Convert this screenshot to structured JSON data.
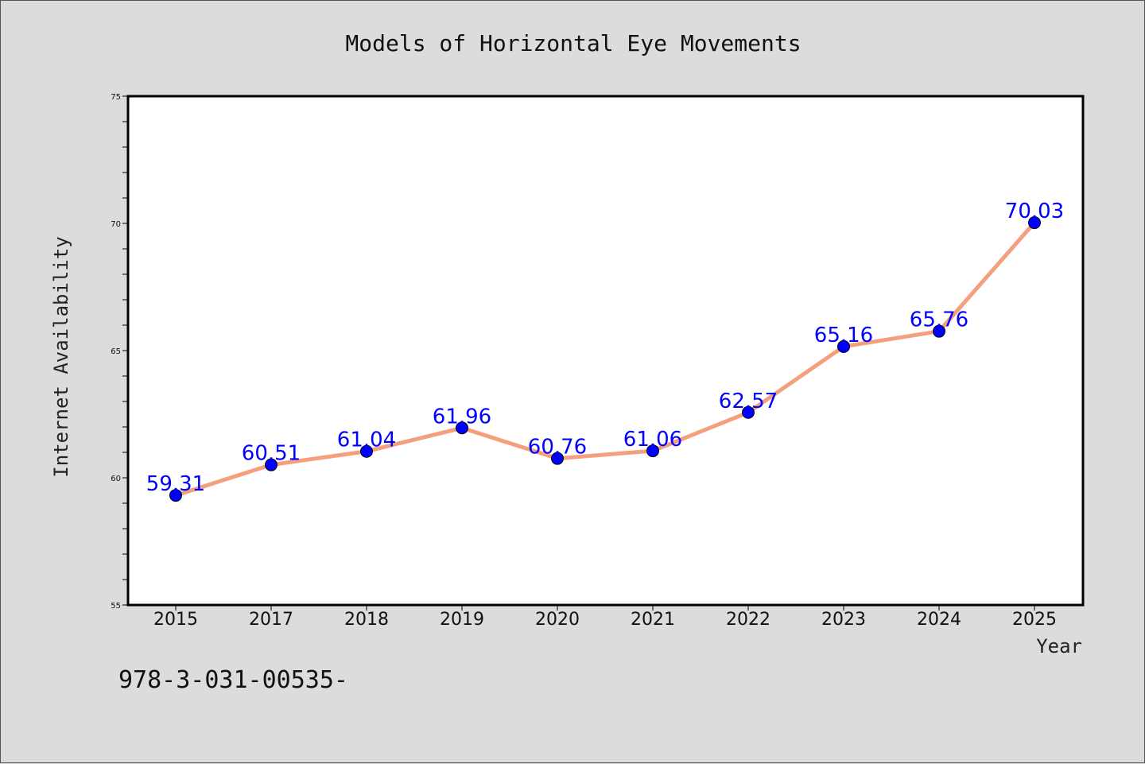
{
  "chart_data": {
    "type": "line",
    "title": "Models of Horizontal Eye Movements",
    "xlabel": "Year",
    "ylabel": "Internet Availability",
    "categories": [
      "2015",
      "2017",
      "2018",
      "2019",
      "2020",
      "2021",
      "2022",
      "2023",
      "2024",
      "2025"
    ],
    "values": [
      59.31,
      60.51,
      61.04,
      61.96,
      60.76,
      61.06,
      62.57,
      65.16,
      65.76,
      70.03
    ],
    "data_labels": [
      "59.31",
      "60.51",
      "61.04",
      "61.96",
      "60.76",
      "61.06",
      "62.57",
      "65.16",
      "65.76",
      "70.03"
    ],
    "ylim": [
      55,
      75
    ],
    "yticks": [
      55,
      60,
      65,
      70,
      75
    ],
    "ytick_labels": [
      "55",
      "60",
      "65",
      "70",
      "75"
    ],
    "grid": false,
    "legend": "none",
    "colors": {
      "line": "#f4a07e",
      "marker": "#0000ff",
      "data_label": "#0000ff",
      "background": "#dcdcdc",
      "plot_area": "#ffffff"
    }
  },
  "footnote": "978-3-031-00535-"
}
